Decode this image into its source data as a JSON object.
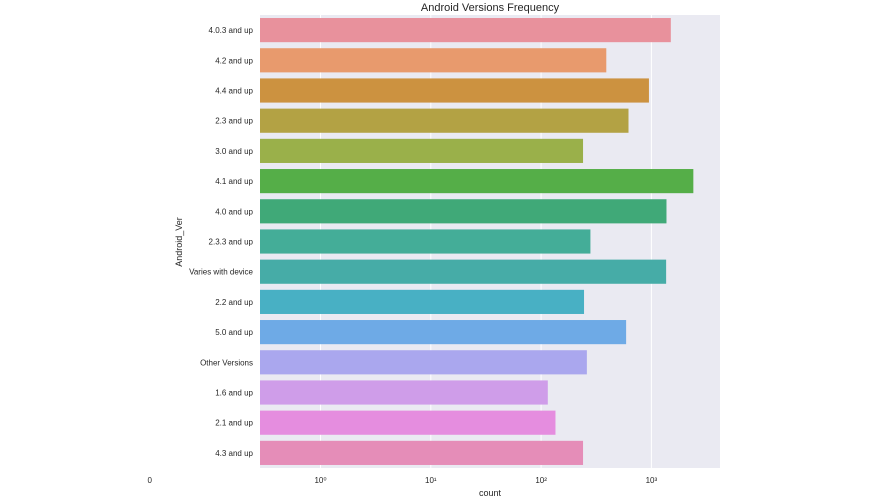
{
  "chart_data": {
    "type": "bar",
    "orientation": "horizontal",
    "title": "Android Versions Frequency",
    "xlabel": "count",
    "ylabel": "Android_Ver",
    "x_scale": "symlog",
    "x_ticks": [
      {
        "value": 0,
        "label": "0"
      },
      {
        "value": 1,
        "label": "10⁰"
      },
      {
        "value": 10,
        "label": "10¹"
      },
      {
        "value": 100,
        "label": "10²"
      },
      {
        "value": 1000,
        "label": "10³"
      }
    ],
    "xlim": [
      0,
      2500
    ],
    "grid": true,
    "categories": [
      "4.0.3 and up",
      "4.2 and up",
      "4.4 and up",
      "2.3 and up",
      "3.0 and up",
      "4.1 and up",
      "4.0 and up",
      "2.3.3 and up",
      "Varies with device",
      "2.2 and up",
      "5.0 and up",
      "Other Versions",
      "1.6 and up",
      "2.1 and up",
      "4.3 and up"
    ],
    "values": [
      1500,
      390,
      950,
      620,
      240,
      2400,
      1370,
      280,
      1360,
      245,
      590,
      260,
      115,
      135,
      240
    ],
    "colors": [
      "#e8919c",
      "#e89a6d",
      "#cc9240",
      "#b3a244",
      "#9ab04a",
      "#55ae48",
      "#40a978",
      "#44ad98",
      "#46aca7",
      "#48b0c4",
      "#6eaae6",
      "#aaa7ee",
      "#cf9de9",
      "#e58ddf",
      "#e58db8"
    ]
  }
}
